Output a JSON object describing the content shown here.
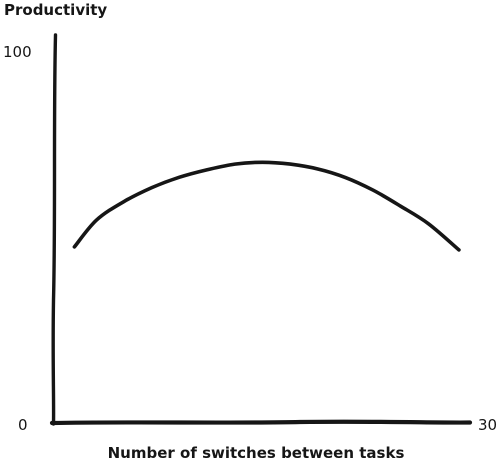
{
  "chart_data": {
    "type": "line",
    "title": "",
    "xlabel": "Number of switches between tasks",
    "ylabel": "Productivity",
    "xlim": [
      0,
      30
    ],
    "ylim": [
      0,
      100
    ],
    "x_tick_labels": [
      "30"
    ],
    "y_tick_labels": [
      "100",
      "0"
    ],
    "origin_label": "0",
    "grid": false,
    "legend": "none",
    "colors": {
      "ink": "#161616"
    },
    "series": [
      {
        "x": [
          1.4,
          3,
          5,
          7,
          9,
          11,
          13,
          15,
          17,
          19,
          21,
          23,
          25,
          27,
          29.2
        ],
        "y": [
          47.2,
          54.4,
          59.4,
          63.1,
          65.9,
          67.9,
          69.4,
          69.9,
          69.4,
          68.1,
          65.8,
          62.4,
          58.1,
          53.4,
          46.4
        ]
      }
    ]
  }
}
